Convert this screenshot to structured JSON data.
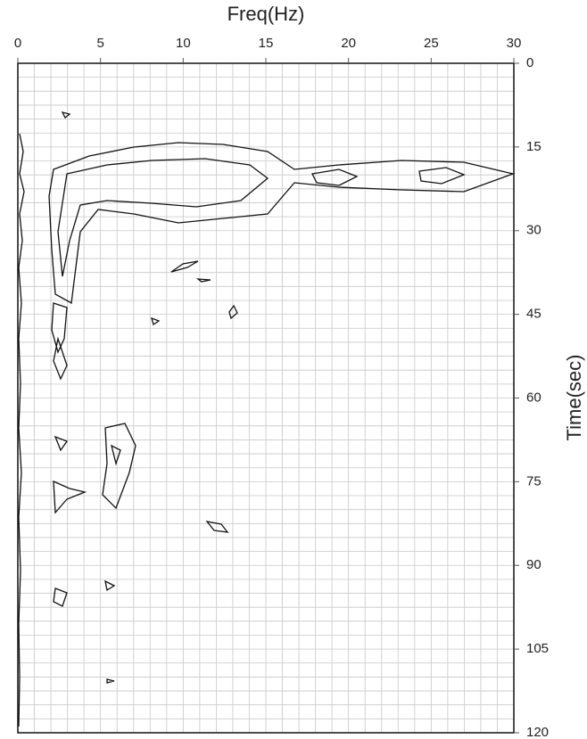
{
  "chart_data": {
    "type": "contour",
    "xlabel": "Freq(Hz)",
    "ylabel": "Time(sec)",
    "xlim": [
      0,
      30
    ],
    "xticks": [
      0,
      5,
      10,
      15,
      20,
      25,
      30
    ],
    "ylim": [
      120,
      0
    ],
    "yticks": [
      0,
      15,
      30,
      45,
      60,
      75,
      90,
      105,
      120
    ],
    "xminorticks": [
      0,
      1,
      2,
      3,
      4,
      5,
      6,
      7,
      8,
      9,
      10,
      11,
      12,
      13,
      14,
      15,
      16,
      17,
      18,
      19,
      20,
      21,
      22,
      23,
      24,
      25,
      26,
      27,
      28,
      29,
      30
    ],
    "yminorticks": [
      0,
      2.5,
      5,
      7.5,
      10,
      12.5,
      15,
      17.5,
      20,
      22.5,
      25,
      27.5,
      30,
      32.5,
      35,
      37.5,
      40,
      42.5,
      45,
      47.5,
      50,
      52.5,
      55,
      57.5,
      60,
      62.5,
      65,
      67.5,
      70,
      72.5,
      75,
      77.5,
      80,
      82.5,
      85,
      87.5,
      90,
      92.5,
      95,
      97.5,
      100,
      102.5,
      105,
      107.5,
      110,
      112.5,
      115,
      117.5,
      120
    ],
    "x_axis_side": "top",
    "y_axis_side": "right",
    "grid": true,
    "color": "#111111"
  }
}
